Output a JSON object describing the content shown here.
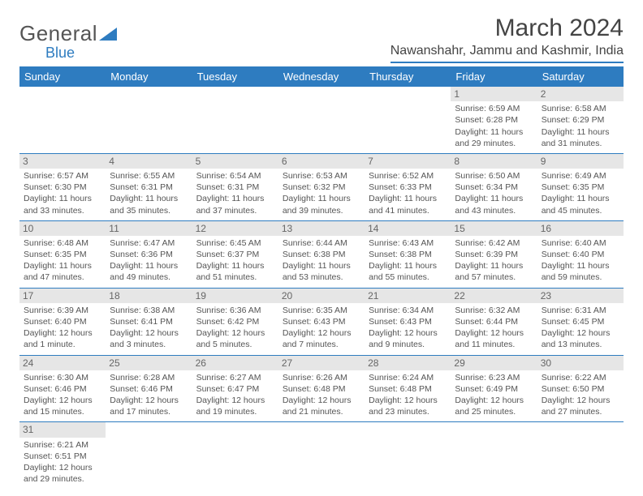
{
  "brand": {
    "general": "General",
    "blue": "Blue"
  },
  "title": "March 2024",
  "location": "Nawanshahr, Jammu and Kashmir, India",
  "colors": {
    "accent": "#2e7cc0",
    "dayHeaderBg": "#e6e6e6",
    "text": "#555555",
    "background": "#ffffff"
  },
  "weekdays": [
    "Sunday",
    "Monday",
    "Tuesday",
    "Wednesday",
    "Thursday",
    "Friday",
    "Saturday"
  ],
  "startWeekday": 5,
  "daysInMonth": 31,
  "days": {
    "1": {
      "sunrise": "6:59 AM",
      "sunset": "6:28 PM",
      "daylight": "11 hours and 29 minutes."
    },
    "2": {
      "sunrise": "6:58 AM",
      "sunset": "6:29 PM",
      "daylight": "11 hours and 31 minutes."
    },
    "3": {
      "sunrise": "6:57 AM",
      "sunset": "6:30 PM",
      "daylight": "11 hours and 33 minutes."
    },
    "4": {
      "sunrise": "6:55 AM",
      "sunset": "6:31 PM",
      "daylight": "11 hours and 35 minutes."
    },
    "5": {
      "sunrise": "6:54 AM",
      "sunset": "6:31 PM",
      "daylight": "11 hours and 37 minutes."
    },
    "6": {
      "sunrise": "6:53 AM",
      "sunset": "6:32 PM",
      "daylight": "11 hours and 39 minutes."
    },
    "7": {
      "sunrise": "6:52 AM",
      "sunset": "6:33 PM",
      "daylight": "11 hours and 41 minutes."
    },
    "8": {
      "sunrise": "6:50 AM",
      "sunset": "6:34 PM",
      "daylight": "11 hours and 43 minutes."
    },
    "9": {
      "sunrise": "6:49 AM",
      "sunset": "6:35 PM",
      "daylight": "11 hours and 45 minutes."
    },
    "10": {
      "sunrise": "6:48 AM",
      "sunset": "6:35 PM",
      "daylight": "11 hours and 47 minutes."
    },
    "11": {
      "sunrise": "6:47 AM",
      "sunset": "6:36 PM",
      "daylight": "11 hours and 49 minutes."
    },
    "12": {
      "sunrise": "6:45 AM",
      "sunset": "6:37 PM",
      "daylight": "11 hours and 51 minutes."
    },
    "13": {
      "sunrise": "6:44 AM",
      "sunset": "6:38 PM",
      "daylight": "11 hours and 53 minutes."
    },
    "14": {
      "sunrise": "6:43 AM",
      "sunset": "6:38 PM",
      "daylight": "11 hours and 55 minutes."
    },
    "15": {
      "sunrise": "6:42 AM",
      "sunset": "6:39 PM",
      "daylight": "11 hours and 57 minutes."
    },
    "16": {
      "sunrise": "6:40 AM",
      "sunset": "6:40 PM",
      "daylight": "11 hours and 59 minutes."
    },
    "17": {
      "sunrise": "6:39 AM",
      "sunset": "6:40 PM",
      "daylight": "12 hours and 1 minute."
    },
    "18": {
      "sunrise": "6:38 AM",
      "sunset": "6:41 PM",
      "daylight": "12 hours and 3 minutes."
    },
    "19": {
      "sunrise": "6:36 AM",
      "sunset": "6:42 PM",
      "daylight": "12 hours and 5 minutes."
    },
    "20": {
      "sunrise": "6:35 AM",
      "sunset": "6:43 PM",
      "daylight": "12 hours and 7 minutes."
    },
    "21": {
      "sunrise": "6:34 AM",
      "sunset": "6:43 PM",
      "daylight": "12 hours and 9 minutes."
    },
    "22": {
      "sunrise": "6:32 AM",
      "sunset": "6:44 PM",
      "daylight": "12 hours and 11 minutes."
    },
    "23": {
      "sunrise": "6:31 AM",
      "sunset": "6:45 PM",
      "daylight": "12 hours and 13 minutes."
    },
    "24": {
      "sunrise": "6:30 AM",
      "sunset": "6:46 PM",
      "daylight": "12 hours and 15 minutes."
    },
    "25": {
      "sunrise": "6:28 AM",
      "sunset": "6:46 PM",
      "daylight": "12 hours and 17 minutes."
    },
    "26": {
      "sunrise": "6:27 AM",
      "sunset": "6:47 PM",
      "daylight": "12 hours and 19 minutes."
    },
    "27": {
      "sunrise": "6:26 AM",
      "sunset": "6:48 PM",
      "daylight": "12 hours and 21 minutes."
    },
    "28": {
      "sunrise": "6:24 AM",
      "sunset": "6:48 PM",
      "daylight": "12 hours and 23 minutes."
    },
    "29": {
      "sunrise": "6:23 AM",
      "sunset": "6:49 PM",
      "daylight": "12 hours and 25 minutes."
    },
    "30": {
      "sunrise": "6:22 AM",
      "sunset": "6:50 PM",
      "daylight": "12 hours and 27 minutes."
    },
    "31": {
      "sunrise": "6:21 AM",
      "sunset": "6:51 PM",
      "daylight": "12 hours and 29 minutes."
    }
  },
  "labels": {
    "sunrise": "Sunrise:",
    "sunset": "Sunset:",
    "daylight": "Daylight:"
  }
}
